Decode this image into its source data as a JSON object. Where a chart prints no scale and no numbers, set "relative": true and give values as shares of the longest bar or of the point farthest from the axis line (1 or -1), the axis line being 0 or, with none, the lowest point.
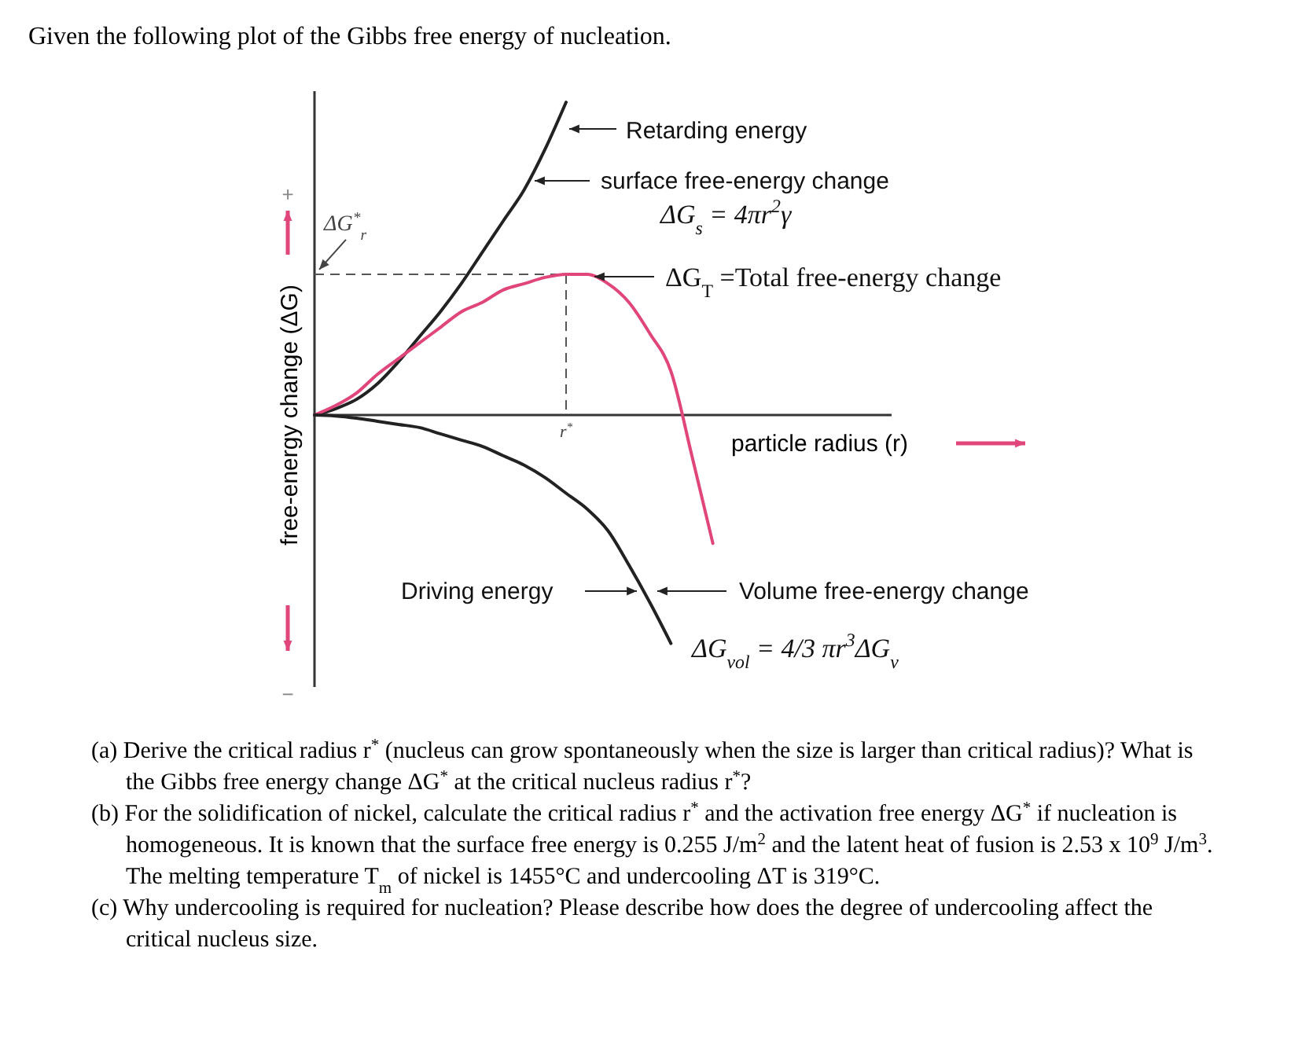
{
  "chart_data": {
    "type": "line",
    "relative": true,
    "title": "Given the following plot of the Gibbs free energy of nucleation.",
    "xlabel": "particle radius (r)",
    "ylabel": "free-energy change (ΔG)",
    "categories": [
      null,
      null,
      null,
      null,
      null,
      null,
      null,
      null,
      null,
      null,
      null,
      null,
      null,
      null,
      null,
      null,
      null,
      null,
      null,
      null,
      null,
      null,
      null,
      null,
      null,
      null,
      null,
      null
    ],
    "series": [
      {
        "color": "#222222",
        "values": [
          0,
          0.02,
          0.05,
          0.1,
          0.17,
          0.25,
          0.33,
          0.42,
          0.52,
          0.62,
          0.72,
          0.85,
          1.0,
          null,
          null,
          null,
          null,
          null,
          null,
          null,
          null,
          null,
          null,
          null,
          null,
          null,
          null,
          null
        ]
      },
      {
        "color": "#e0457b",
        "values": [
          0,
          0.03,
          0.07,
          0.13,
          0.18,
          0.23,
          0.28,
          0.33,
          0.36,
          0.4,
          0.42,
          0.44,
          0.45,
          0.45,
          0.42,
          0.36,
          0.26,
          0.14,
          -0.13,
          -0.41,
          null,
          null,
          null,
          null,
          null,
          null,
          null,
          null
        ]
      },
      {
        "color": "#222222",
        "values": [
          0,
          -0.003,
          -0.01,
          -0.02,
          -0.03,
          -0.04,
          -0.06,
          -0.08,
          -0.1,
          -0.13,
          -0.16,
          -0.2,
          -0.25,
          -0.3,
          -0.37,
          -0.48,
          -0.6,
          -0.73,
          null,
          null,
          null,
          null,
          null,
          null,
          null,
          null,
          null,
          null
        ]
      }
    ],
    "ref_lines": [
      {
        "axis": "y",
        "value": 0.45,
        "label": "ΔG$^{*}$$_{r}$",
        "color": "#555555",
        "line_style": "dashed"
      }
    ],
    "annotations": [
      "Retarding energy",
      "surface free-energy change",
      "ΔG$_{s}$ = 4πr$^{2}$γ",
      "ΔG$_{T}$ =Total free-energy change",
      "Driving energy",
      "Volume free-energy change",
      "ΔG$_{vol}$ = 4/3 πr$^{3}$ΔG$_{v}$",
      "+",
      "−",
      "r$^{*}$",
      "(a) Derive the critical radius r$^{*}$ (nucleus can grow spontaneously when the size is larger than critical radius)? What is the Gibbs free energy change ΔG$^{*}$ at the critical nucleus radius r$^{*}$?",
      "(b) For the solidification of nickel, calculate the critical radius r$^{*}$ and the activation free energy ΔG$^{*}$ if nucleation is homogeneous. It is known that the surface free energy is 0.255 J/m$^{2}$ and the latent heat of fusion is 2.53 x 10$^{9}$ J/m$^{3}$. The melting temperature T$_{m}$ of nickel is 1455°C and undercooling ΔT is 319°C.",
      "(c) Why undercooling is required for nucleation? Please describe how does the degree of undercooling affect the critical nucleus size."
    ]
  }
}
